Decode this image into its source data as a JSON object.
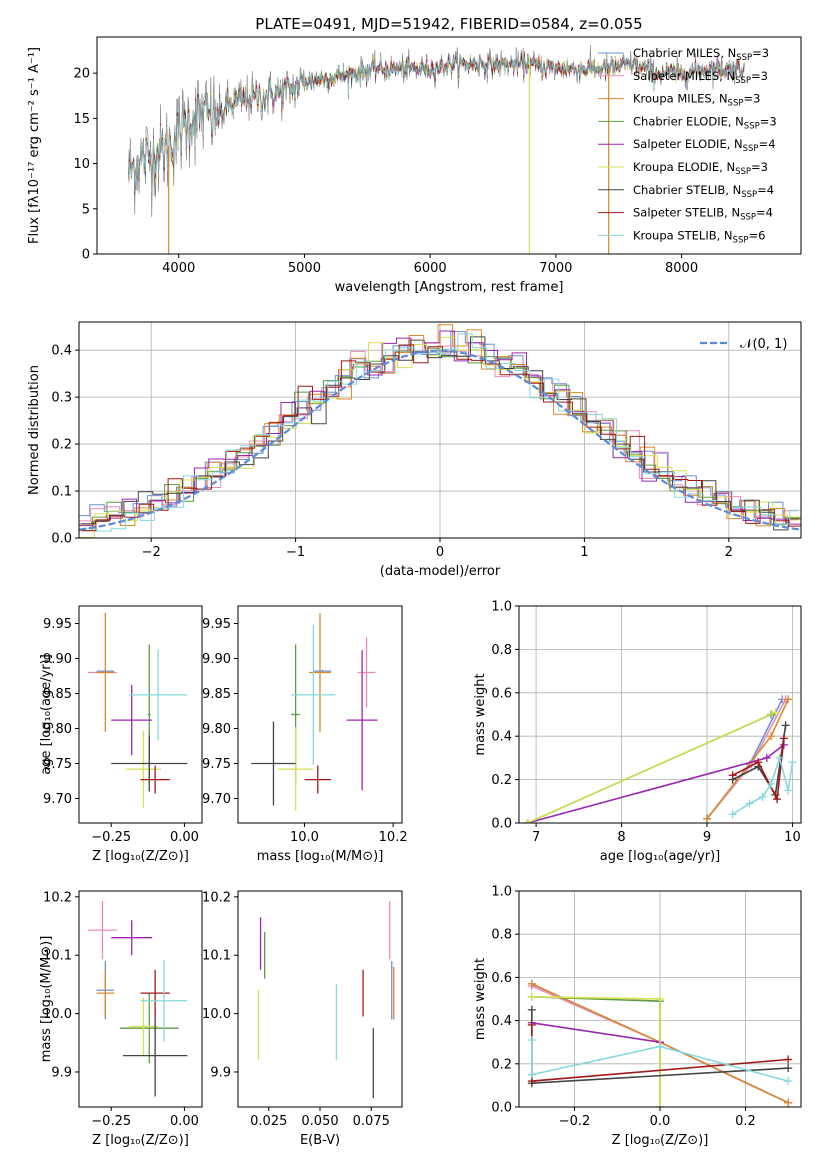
{
  "colors": {
    "Chabrier MILES": "#6b8fd6",
    "Salpeter MILES": "#e88ac0",
    "Kroupa MILES": "#d98a2b",
    "Chabrier ELODIE": "#5f9a45",
    "Salpeter ELODIE": "#9a27b0",
    "Kroupa ELODIE": "#d6e055",
    "Chabrier STELIB": "#444444",
    "Salpeter STELIB": "#a01818",
    "Kroupa STELIB": "#87d8dd",
    "data": "#888888",
    "normal": "#5b8bd6"
  },
  "chart_data": [
    {
      "id": "spectrum",
      "type": "line",
      "title": "PLATE=0491, MJD=51942, FIBERID=0584, z=0.055",
      "xlabel": "wavelength [Angstrom, rest frame]",
      "ylabel": "Flux [fλ10⁻¹⁷ erg cm⁻² s⁻¹ A⁻¹]",
      "xlim": [
        3350,
        8950
      ],
      "ylim": [
        0,
        24
      ],
      "xticks": [
        4000,
        5000,
        6000,
        7000,
        8000
      ],
      "yticks": [
        0,
        5,
        10,
        15,
        20
      ],
      "legend": [
        {
          "series": "Chabrier MILES",
          "label": "Chabrier MILES, N",
          "sub": "SSP",
          "val": "=3"
        },
        {
          "series": "Salpeter MILES",
          "label": "Salpeter MILES, N",
          "sub": "SSP",
          "val": "=3"
        },
        {
          "series": "Kroupa MILES",
          "label": "Kroupa MILES, N",
          "sub": "SSP",
          "val": "=3"
        },
        {
          "series": "Chabrier ELODIE",
          "label": "Chabrier ELODIE, N",
          "sub": "SSP",
          "val": "=3"
        },
        {
          "series": "Salpeter ELODIE",
          "label": "Salpeter ELODIE, N",
          "sub": "SSP",
          "val": "=4"
        },
        {
          "series": "Kroupa ELODIE",
          "label": "Kroupa ELODIE, N",
          "sub": "SSP",
          "val": "=3"
        },
        {
          "series": "Chabrier STELIB",
          "label": "Chabrier STELIB, N",
          "sub": "SSP",
          "val": "=4"
        },
        {
          "series": "Salpeter STELIB",
          "label": "Salpeter STELIB, N",
          "sub": "SSP",
          "val": "=4"
        },
        {
          "series": "Kroupa STELIB",
          "label": "Kroupa STELIB, N",
          "sub": "SSP",
          "val": "=6"
        }
      ],
      "legend_loc": "upper-right",
      "continuum": [
        [
          3600,
          9
        ],
        [
          3700,
          10.5
        ],
        [
          3800,
          11
        ],
        [
          3900,
          11.5
        ],
        [
          4000,
          13.5
        ],
        [
          4100,
          15
        ],
        [
          4200,
          15.5
        ],
        [
          4300,
          15
        ],
        [
          4400,
          16.5
        ],
        [
          4500,
          17
        ],
        [
          4700,
          17.5
        ],
        [
          4850,
          18
        ],
        [
          5000,
          19
        ],
        [
          5200,
          19.5
        ],
        [
          5400,
          20
        ],
        [
          5600,
          20.5
        ],
        [
          5800,
          20.5
        ],
        [
          6000,
          20.5
        ],
        [
          6200,
          21
        ],
        [
          6400,
          21
        ],
        [
          6600,
          21
        ],
        [
          6800,
          21
        ],
        [
          7000,
          20.5
        ],
        [
          7200,
          20.5
        ],
        [
          7400,
          20.5
        ],
        [
          7600,
          21
        ],
        [
          7800,
          20
        ],
        [
          8000,
          20
        ],
        [
          8200,
          20.5
        ],
        [
          8400,
          20.5
        ],
        [
          8500,
          20.5
        ]
      ],
      "drops": [
        {
          "series": "Kroupa MILES",
          "x": 3920
        },
        {
          "series": "Kroupa ELODIE",
          "x": 6790
        },
        {
          "series": "Kroupa MILES",
          "x": 7420
        }
      ]
    },
    {
      "id": "residuals",
      "type": "line",
      "xlabel": "(data-model)/error",
      "ylabel": "Normed distribution",
      "xlim": [
        -2.5,
        2.5
      ],
      "ylim": [
        0,
        0.46
      ],
      "xticks": [
        -2,
        -1,
        0,
        1,
        2
      ],
      "yticks": [
        0.0,
        0.1,
        0.2,
        0.3,
        0.4
      ],
      "grid": true,
      "legend": [
        {
          "label": "𝒩(0, 1)"
        }
      ],
      "legend_loc": "upper-right",
      "bin_width": 0.1
    },
    {
      "id": "z-age",
      "type": "scatter",
      "xlabel": "Z [log₁₀(Z/Z⊙)]",
      "ylabel": "age  [log₁₀(age/yr)]",
      "xlim": [
        -0.36,
        0.06
      ],
      "ylim": [
        9.665,
        9.975
      ],
      "xticks": [
        -0.25,
        0.0
      ],
      "xticklabels": [
        "−0.25",
        "0.00"
      ],
      "yticks": [
        9.7,
        9.75,
        9.8,
        9.85,
        9.9,
        9.95
      ],
      "points": [
        {
          "series": "Chabrier MILES",
          "x": -0.27,
          "y": 9.882,
          "xerr": 0.03,
          "yerr": 0.002
        },
        {
          "series": "Salpeter MILES",
          "x": -0.28,
          "y": 9.88,
          "xerr": 0.05,
          "yerr": 0.001
        },
        {
          "series": "Kroupa MILES",
          "x": -0.27,
          "y": 9.88,
          "xerr": 0.03,
          "yerr": 0.085
        },
        {
          "series": "Chabrier ELODIE",
          "x": -0.12,
          "y": 9.82,
          "xerr": 0.005,
          "yerr": 0.1
        },
        {
          "series": "Salpeter ELODIE",
          "x": -0.18,
          "y": 9.812,
          "xerr": 0.07,
          "yerr": 0.05
        },
        {
          "series": "Kroupa ELODIE",
          "x": -0.14,
          "y": 9.742,
          "xerr": 0.06,
          "yerr": 0.055
        },
        {
          "series": "Chabrier STELIB",
          "x": -0.12,
          "y": 9.75,
          "xerr": 0.13,
          "yerr": 0.04
        },
        {
          "series": "Salpeter STELIB",
          "x": -0.1,
          "y": 9.727,
          "xerr": 0.05,
          "yerr": 0.02
        },
        {
          "series": "Kroupa STELIB",
          "x": -0.09,
          "y": 9.848,
          "xerr": 0.1,
          "yerr": 0.065
        }
      ]
    },
    {
      "id": "mass-age",
      "type": "scatter",
      "xlabel": "mass [log₁₀(M/M⊙)]",
      "ylabel": "",
      "xlim": [
        9.85,
        10.22
      ],
      "ylim": [
        9.665,
        9.975
      ],
      "xticks": [
        10.0,
        10.2
      ],
      "yticks": [
        9.7,
        9.75,
        9.8,
        9.85,
        9.9,
        9.95
      ],
      "points": [
        {
          "series": "Chabrier MILES",
          "x": 10.04,
          "y": 9.882,
          "xerr": 0.02,
          "yerr": 0.002
        },
        {
          "series": "Salpeter MILES",
          "x": 10.14,
          "y": 9.88,
          "xerr": 0.02,
          "yerr": 0.05
        },
        {
          "series": "Kroupa MILES",
          "x": 10.035,
          "y": 9.88,
          "xerr": 0.025,
          "yerr": 0.085
        },
        {
          "series": "Chabrier ELODIE",
          "x": 9.98,
          "y": 9.82,
          "xerr": 0.01,
          "yerr": 0.1
        },
        {
          "series": "Salpeter ELODIE",
          "x": 10.13,
          "y": 9.812,
          "xerr": 0.035,
          "yerr": 0.1
        },
        {
          "series": "Kroupa ELODIE",
          "x": 9.98,
          "y": 9.742,
          "xerr": 0.04,
          "yerr": 0.06
        },
        {
          "series": "Chabrier STELIB",
          "x": 9.93,
          "y": 9.75,
          "xerr": 0.05,
          "yerr": 0.06
        },
        {
          "series": "Salpeter STELIB",
          "x": 10.03,
          "y": 9.727,
          "xerr": 0.03,
          "yerr": 0.02
        },
        {
          "series": "Kroupa STELIB",
          "x": 10.02,
          "y": 9.848,
          "xerr": 0.05,
          "yerr": 0.1
        }
      ]
    },
    {
      "id": "age-weight",
      "type": "line",
      "xlabel": "age  [log₁₀(age/yr)]",
      "ylabel": "mass weight",
      "xlim": [
        6.8,
        10.1
      ],
      "ylim": [
        0,
        1
      ],
      "xticks": [
        7,
        8,
        9,
        10
      ],
      "yticks": [
        0.0,
        0.2,
        0.4,
        0.6,
        0.8,
        1.0
      ],
      "grid": true,
      "series": [
        {
          "name": "Chabrier MILES",
          "x": [
            9.0,
            9.5,
            9.88
          ],
          "y": [
            0.02,
            0.27,
            0.57
          ]
        },
        {
          "name": "Salpeter MILES",
          "x": [
            9.0,
            9.52,
            9.92
          ],
          "y": [
            0.02,
            0.27,
            0.57
          ]
        },
        {
          "name": "Kroupa MILES",
          "x": [
            9.0,
            9.75,
            9.95
          ],
          "y": [
            0.02,
            0.4,
            0.57
          ]
        },
        {
          "name": "Chabrier ELODIE",
          "x": [
            6.9,
            9.75
          ],
          "y": [
            0.0,
            0.5
          ]
        },
        {
          "name": "Salpeter ELODIE",
          "x": [
            6.9,
            9.7,
            9.9
          ],
          "y": [
            0.0,
            0.3,
            0.36
          ]
        },
        {
          "name": "Kroupa ELODIE",
          "x": [
            6.9,
            9.8
          ],
          "y": [
            0.0,
            0.51
          ]
        },
        {
          "name": "Chabrier STELIB",
          "x": [
            9.3,
            9.6,
            9.8,
            9.92
          ],
          "y": [
            0.2,
            0.26,
            0.13,
            0.45
          ]
        },
        {
          "name": "Salpeter STELIB",
          "x": [
            9.3,
            9.6,
            9.82,
            9.9
          ],
          "y": [
            0.22,
            0.28,
            0.11,
            0.39
          ]
        },
        {
          "name": "Kroupa STELIB",
          "x": [
            9.3,
            9.5,
            9.65,
            9.75,
            9.85,
            9.95,
            10.0
          ],
          "y": [
            0.04,
            0.09,
            0.12,
            0.18,
            0.3,
            0.15,
            0.28
          ]
        }
      ]
    },
    {
      "id": "z-mass",
      "type": "scatter",
      "xlabel": "Z [log₁₀(Z/Z⊙)]",
      "ylabel": "mass [log₁₀(M/M⊙)]",
      "xlim": [
        -0.36,
        0.06
      ],
      "ylim": [
        9.84,
        10.21
      ],
      "xticks": [
        -0.25,
        0.0
      ],
      "xticklabels": [
        "−0.25",
        "0.00"
      ],
      "yticks": [
        9.9,
        10.0,
        10.1,
        10.2
      ],
      "points": [
        {
          "series": "Chabrier MILES",
          "x": -0.27,
          "y": 10.04,
          "xerr": 0.03,
          "yerr": 0.05
        },
        {
          "series": "Salpeter MILES",
          "x": -0.28,
          "y": 10.143,
          "xerr": 0.05,
          "yerr": 0.05
        },
        {
          "series": "Kroupa MILES",
          "x": -0.27,
          "y": 10.035,
          "xerr": 0.03,
          "yerr": 0.04
        },
        {
          "series": "Chabrier ELODIE",
          "x": -0.12,
          "y": 9.975,
          "xerr": 0.1,
          "yerr": 0.06
        },
        {
          "series": "Salpeter ELODIE",
          "x": -0.18,
          "y": 10.13,
          "xerr": 0.07,
          "yerr": 0.03
        },
        {
          "series": "Kroupa ELODIE",
          "x": -0.14,
          "y": 9.978,
          "xerr": 0.05,
          "yerr": 0.05
        },
        {
          "series": "Chabrier STELIB",
          "x": -0.1,
          "y": 9.928,
          "xerr": 0.11,
          "yerr": 0.07
        },
        {
          "series": "Salpeter STELIB",
          "x": -0.1,
          "y": 10.035,
          "xerr": 0.05,
          "yerr": 0.04
        },
        {
          "series": "Kroupa STELIB",
          "x": -0.07,
          "y": 10.022,
          "xerr": 0.08,
          "yerr": 0.07
        }
      ]
    },
    {
      "id": "ebv-mass",
      "type": "scatter",
      "xlabel": "E(B-V)",
      "ylabel": "",
      "xlim": [
        0.01,
        0.09
      ],
      "ylim": [
        9.84,
        10.21
      ],
      "xticks": [
        0.025,
        0.05,
        0.075
      ],
      "xticklabels": [
        "0.025",
        "0.050",
        "0.075"
      ],
      "yticks": [
        9.9,
        10.0,
        10.1,
        10.2
      ],
      "points": [
        {
          "series": "Chabrier MILES",
          "x": 0.085,
          "y": 10.04,
          "xerr": 0,
          "yerr": 0.05
        },
        {
          "series": "Salpeter MILES",
          "x": 0.084,
          "y": 10.143,
          "xerr": 0,
          "yerr": 0.05
        },
        {
          "series": "Kroupa MILES",
          "x": 0.086,
          "y": 10.035,
          "xerr": 0,
          "yerr": 0.045
        },
        {
          "series": "Chabrier ELODIE",
          "x": 0.023,
          "y": 10.1,
          "xerr": 0,
          "yerr": 0.04
        },
        {
          "series": "Salpeter ELODIE",
          "x": 0.021,
          "y": 10.12,
          "xerr": 0,
          "yerr": 0.045
        },
        {
          "series": "Kroupa ELODIE",
          "x": 0.02,
          "y": 9.98,
          "xerr": 0,
          "yerr": 0.06
        },
        {
          "series": "Chabrier STELIB",
          "x": 0.076,
          "y": 9.915,
          "xerr": 0,
          "yerr": 0.06
        },
        {
          "series": "Salpeter STELIB",
          "x": 0.071,
          "y": 10.035,
          "xerr": 0,
          "yerr": 0.04
        },
        {
          "series": "Kroupa STELIB",
          "x": 0.058,
          "y": 9.985,
          "xerr": 0,
          "yerr": 0.065
        }
      ]
    },
    {
      "id": "z-weight",
      "type": "line",
      "xlabel": "Z [log₁₀(Z/Z⊙)]",
      "ylabel": "mass weight",
      "xlim": [
        -0.33,
        0.33
      ],
      "ylim": [
        0,
        1
      ],
      "xticks": [
        -0.2,
        0.0,
        0.2
      ],
      "xticklabels": [
        "−0.2",
        "0.0",
        "0.2"
      ],
      "yticks": [
        0.0,
        0.2,
        0.4,
        0.6,
        0.8,
        1.0
      ],
      "grid": true,
      "series": [
        {
          "name": "Chabrier MILES",
          "x": [
            -0.3,
            0.0,
            0.3
          ],
          "y": [
            0.57,
            0.3,
            0.02
          ]
        },
        {
          "name": "Salpeter MILES",
          "x": [
            -0.3,
            0.0,
            0.3
          ],
          "y": [
            0.56,
            0.3,
            0.02
          ]
        },
        {
          "name": "Kroupa MILES",
          "x": [
            -0.3,
            0.0,
            0.3
          ],
          "y": [
            0.57,
            0.3,
            0.02
          ]
        },
        {
          "name": "Chabrier ELODIE",
          "x": [
            -0.3,
            0.0,
            0.0
          ],
          "y": [
            0.51,
            0.49,
            0.0
          ]
        },
        {
          "name": "Salpeter ELODIE",
          "x": [
            -0.3,
            0.0
          ],
          "y": [
            0.39,
            0.3
          ]
        },
        {
          "name": "Kroupa ELODIE",
          "x": [
            -0.3,
            0.0,
            0.0
          ],
          "y": [
            0.51,
            0.5,
            0.0
          ]
        },
        {
          "name": "Chabrier STELIB",
          "x": [
            -0.3,
            -0.3,
            0.3
          ],
          "y": [
            0.45,
            0.11,
            0.18
          ]
        },
        {
          "name": "Salpeter STELIB",
          "x": [
            -0.3,
            -0.3,
            0.3
          ],
          "y": [
            0.38,
            0.12,
            0.22
          ]
        },
        {
          "name": "Kroupa STELIB",
          "x": [
            -0.3,
            -0.3,
            0.0,
            0.3
          ],
          "y": [
            0.31,
            0.15,
            0.28,
            0.12
          ]
        }
      ]
    }
  ]
}
